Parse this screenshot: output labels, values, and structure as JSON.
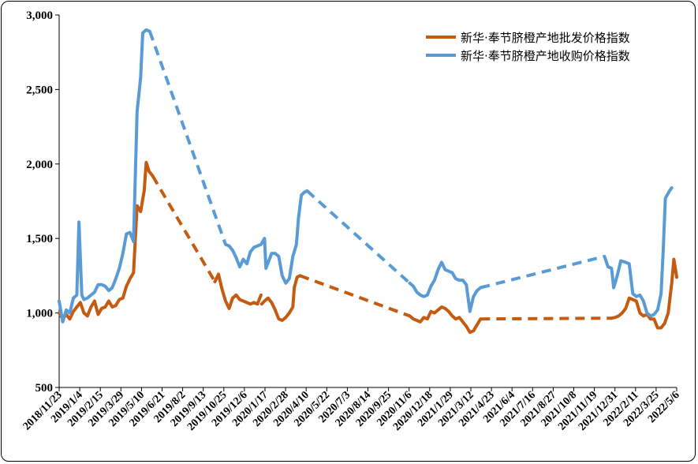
{
  "chart_data": {
    "type": "line",
    "title": "",
    "xlabel": "",
    "ylabel": "",
    "ylim": [
      500,
      3000
    ],
    "yticks": [
      "500",
      "1,000",
      "1,500",
      "2,000",
      "2,500",
      "3,000"
    ],
    "xtick_labels": [
      "2018/11/23",
      "2019/1/4",
      "2019/2/15",
      "2019/3/29",
      "2019/5/10",
      "2019/6/21",
      "2019/8/2",
      "2019/9/13",
      "2019/10/25",
      "2019/12/6",
      "2020/1/17",
      "2020/2/28",
      "2020/4/10",
      "2020/5/22",
      "2020/7/3",
      "2020/8/14",
      "2020/9/25",
      "2020/11/6",
      "2020/12/18",
      "2021/1/29",
      "2021/3/12",
      "2021/4/23",
      "2021/6/4",
      "2021/7/16",
      "2021/8/27",
      "2021/10/8",
      "2021/11/19",
      "2021/12/31",
      "2022/2/11",
      "2022/3/25",
      "2022/5/6"
    ],
    "legend_position": "top-right",
    "grid": false,
    "series": [
      {
        "name": "新华·奉节脐橙产地批发价格指数",
        "color": "#C55A11",
        "segments": [
          {
            "style": "solid",
            "points": [
              [
                0,
                1000
              ],
              [
                0.5,
                960
              ],
              [
                1,
                990
              ],
              [
                1.5,
                960
              ],
              [
                2,
                1010
              ],
              [
                2.5,
                1040
              ],
              [
                3,
                1070
              ],
              [
                3.5,
                1000
              ],
              [
                4,
                980
              ],
              [
                4.5,
                1040
              ],
              [
                5,
                1080
              ],
              [
                5.5,
                990
              ],
              [
                6,
                1030
              ],
              [
                6.5,
                1040
              ],
              [
                7,
                1080
              ],
              [
                7.5,
                1040
              ],
              [
                8,
                1050
              ],
              [
                8.5,
                1090
              ],
              [
                9,
                1100
              ],
              [
                9.5,
                1180
              ],
              [
                10,
                1230
              ],
              [
                10.5,
                1270
              ],
              [
                11,
                1720
              ],
              [
                11.5,
                1680
              ],
              [
                12,
                1820
              ],
              [
                12.3,
                2010
              ],
              [
                12.7,
                1950
              ],
              [
                13.2,
                1920
              ]
            ]
          },
          {
            "style": "dashed",
            "points": [
              [
                13.2,
                1920
              ],
              [
                22,
                1210
              ]
            ]
          },
          {
            "style": "solid",
            "points": [
              [
                22,
                1210
              ],
              [
                22.5,
                1260
              ],
              [
                23,
                1160
              ],
              [
                23.5,
                1080
              ],
              [
                24,
                1030
              ],
              [
                24.5,
                1100
              ],
              [
                25,
                1120
              ],
              [
                25.5,
                1090
              ],
              [
                26,
                1080
              ],
              [
                26.5,
                1070
              ],
              [
                27,
                1060
              ],
              [
                27.5,
                1070
              ],
              [
                28,
                1060
              ],
              [
                28.5,
                1120
              ]
            ]
          },
          {
            "style": "solid",
            "points": [
              [
                28.6,
                1060
              ],
              [
                29,
                1080
              ],
              [
                29.5,
                1100
              ],
              [
                30,
                1070
              ],
              [
                30.5,
                1020
              ],
              [
                31,
                960
              ],
              [
                31.5,
                950
              ],
              [
                32,
                970
              ],
              [
                32.5,
                1000
              ],
              [
                33,
                1040
              ],
              [
                33.2,
                1170
              ],
              [
                33.6,
                1240
              ],
              [
                34,
                1250
              ]
            ]
          },
          {
            "style": "dashed",
            "points": [
              [
                34,
                1250
              ],
              [
                49.5,
                980
              ]
            ]
          },
          {
            "style": "solid",
            "points": [
              [
                49.5,
                980
              ],
              [
                50,
                960
              ],
              [
                50.5,
                950
              ],
              [
                51,
                940
              ],
              [
                51.5,
                970
              ],
              [
                52,
                960
              ],
              [
                52.5,
                1010
              ],
              [
                53,
                1000
              ],
              [
                53.5,
                1020
              ],
              [
                54,
                1040
              ],
              [
                54.5,
                1030
              ],
              [
                55,
                1010
              ],
              [
                55.5,
                980
              ],
              [
                56,
                960
              ],
              [
                56.5,
                970
              ],
              [
                57,
                940
              ],
              [
                57.5,
                910
              ],
              [
                58,
                870
              ],
              [
                58.5,
                880
              ],
              [
                59,
                920
              ],
              [
                59.5,
                960
              ]
            ]
          },
          {
            "style": "dashed",
            "points": [
              [
                59.5,
                960
              ],
              [
                78,
                965
              ]
            ]
          },
          {
            "style": "solid",
            "points": [
              [
                78,
                965
              ],
              [
                78.5,
                970
              ],
              [
                79,
                980
              ],
              [
                79.5,
                1000
              ],
              [
                80,
                1030
              ],
              [
                80.5,
                1100
              ],
              [
                81,
                1090
              ],
              [
                81.5,
                1080
              ],
              [
                82,
                1000
              ],
              [
                82.5,
                980
              ],
              [
                83,
                990
              ],
              [
                83.5,
                960
              ],
              [
                84,
                960
              ],
              [
                84.5,
                900
              ],
              [
                85,
                900
              ],
              [
                85.5,
                930
              ],
              [
                86,
                1000
              ],
              [
                86.5,
                1200
              ],
              [
                86.8,
                1360
              ],
              [
                87.2,
                1240
              ]
            ]
          }
        ]
      },
      {
        "name": "新华·奉节脐橙产地收购价格指数",
        "color": "#5B9BD5",
        "segments": [
          {
            "style": "solid",
            "points": [
              [
                0,
                1080
              ],
              [
                0.5,
                940
              ],
              [
                1,
                1020
              ],
              [
                1.5,
                1000
              ],
              [
                2,
                1100
              ],
              [
                2.5,
                1120
              ],
              [
                2.8,
                1610
              ],
              [
                3.2,
                1120
              ],
              [
                3.5,
                1090
              ],
              [
                4,
                1100
              ],
              [
                4.5,
                1120
              ],
              [
                5,
                1140
              ],
              [
                5.5,
                1190
              ],
              [
                6,
                1190
              ],
              [
                6.5,
                1180
              ],
              [
                7,
                1150
              ],
              [
                7.5,
                1170
              ],
              [
                8,
                1230
              ],
              [
                8.5,
                1300
              ],
              [
                9,
                1400
              ],
              [
                9.5,
                1530
              ],
              [
                10,
                1540
              ],
              [
                10.5,
                1480
              ],
              [
                11,
                2350
              ],
              [
                11.5,
                2580
              ],
              [
                11.8,
                2880
              ],
              [
                12.3,
                2900
              ],
              [
                12.8,
                2890
              ]
            ]
          },
          {
            "style": "dashed",
            "points": [
              [
                12.8,
                2890
              ],
              [
                23.5,
                1460
              ]
            ]
          },
          {
            "style": "solid",
            "points": [
              [
                23.5,
                1460
              ],
              [
                24,
                1450
              ],
              [
                24.5,
                1420
              ],
              [
                25,
                1370
              ],
              [
                25.5,
                1310
              ],
              [
                26,
                1360
              ],
              [
                26.5,
                1330
              ],
              [
                27,
                1410
              ],
              [
                27.5,
                1440
              ],
              [
                28,
                1450
              ],
              [
                28.5,
                1460
              ],
              [
                29,
                1500
              ],
              [
                29.2,
                1300
              ],
              [
                29.6,
                1350
              ],
              [
                30,
                1400
              ],
              [
                30.5,
                1400
              ],
              [
                31,
                1380
              ],
              [
                31.5,
                1250
              ],
              [
                32,
                1200
              ],
              [
                32.5,
                1230
              ],
              [
                33,
                1380
              ],
              [
                33.5,
                1460
              ],
              [
                33.8,
                1640
              ],
              [
                34.2,
                1790
              ],
              [
                34.6,
                1810
              ],
              [
                35,
                1820
              ]
            ]
          },
          {
            "style": "dashed",
            "points": [
              [
                35,
                1820
              ],
              [
                49.5,
                1200
              ]
            ]
          },
          {
            "style": "solid",
            "points": [
              [
                49.5,
                1200
              ],
              [
                50,
                1180
              ],
              [
                50.5,
                1140
              ],
              [
                51,
                1120
              ],
              [
                51.5,
                1110
              ],
              [
                52,
                1120
              ],
              [
                52.5,
                1180
              ],
              [
                53,
                1220
              ],
              [
                53.5,
                1290
              ],
              [
                54,
                1340
              ],
              [
                54.5,
                1290
              ],
              [
                55,
                1280
              ],
              [
                55.5,
                1270
              ],
              [
                56,
                1230
              ],
              [
                56.5,
                1220
              ],
              [
                57,
                1220
              ],
              [
                57.5,
                1190
              ],
              [
                58,
                1010
              ],
              [
                58.5,
                1110
              ],
              [
                59,
                1150
              ],
              [
                59.5,
                1170
              ]
            ]
          },
          {
            "style": "dashed",
            "points": [
              [
                59.5,
                1170
              ],
              [
                77,
                1380
              ]
            ]
          },
          {
            "style": "solid",
            "points": [
              [
                77,
                1380
              ],
              [
                77.5,
                1310
              ],
              [
                78,
                1300
              ],
              [
                78.3,
                1170
              ],
              [
                78.8,
                1250
              ],
              [
                79.3,
                1350
              ],
              [
                80,
                1340
              ],
              [
                80.5,
                1330
              ],
              [
                81,
                1130
              ],
              [
                81.5,
                1110
              ],
              [
                82,
                1120
              ],
              [
                82.5,
                1080
              ],
              [
                83,
                1000
              ],
              [
                83.5,
                980
              ],
              [
                84,
                990
              ],
              [
                84.5,
                1020
              ],
              [
                85,
                1130
              ],
              [
                85.3,
                1420
              ],
              [
                85.6,
                1770
              ],
              [
                86.2,
                1820
              ],
              [
                86.5,
                1840
              ]
            ]
          }
        ]
      }
    ]
  }
}
